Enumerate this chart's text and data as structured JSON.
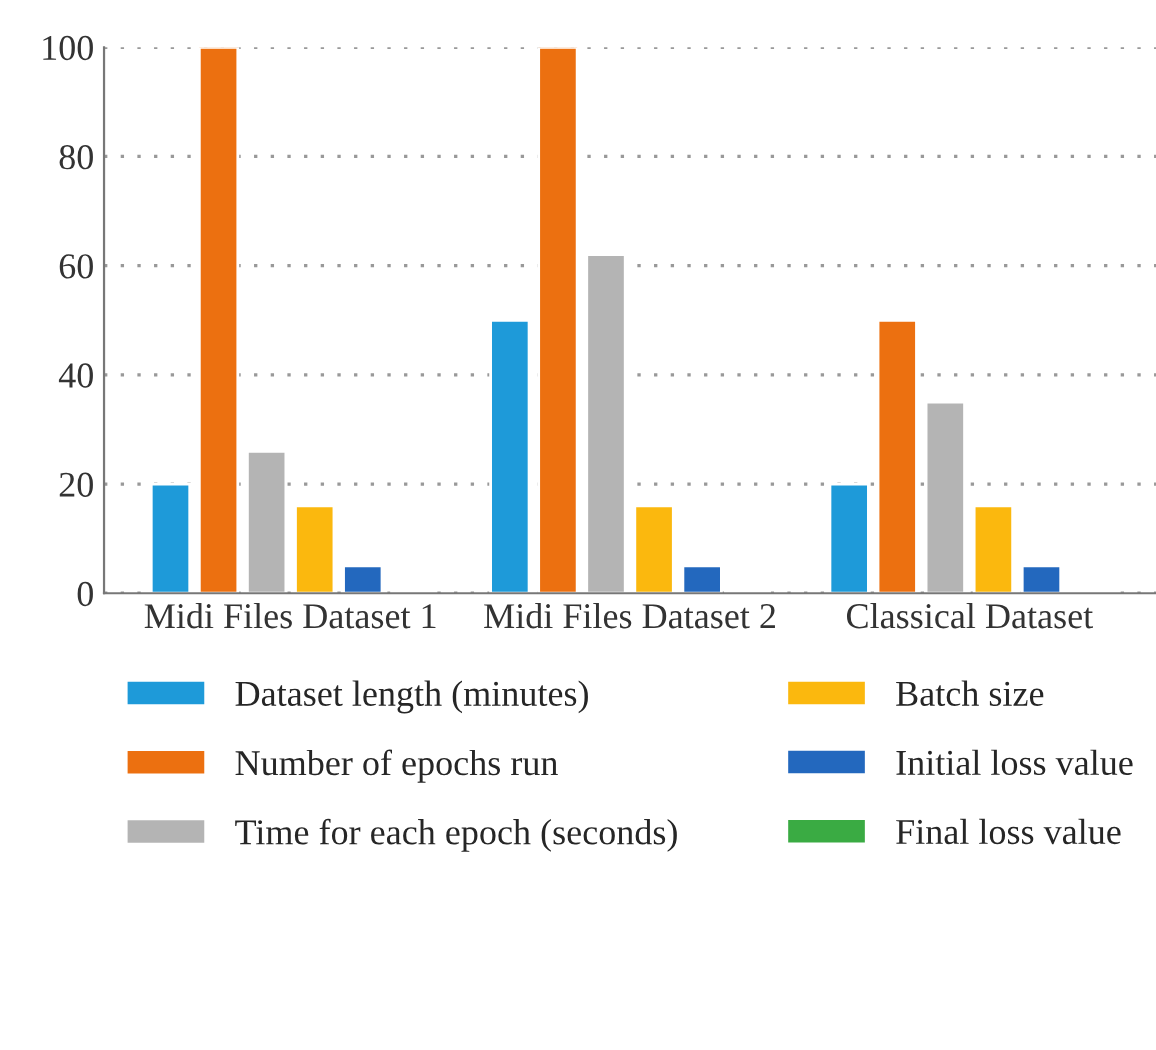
{
  "chart_data": {
    "type": "bar",
    "categories": [
      "Midi Files Dataset 1",
      "Midi Files Dataset 2",
      "Classical Dataset"
    ],
    "series": [
      {
        "name": "Dataset length (minutes)",
        "color": "#1e9ad9",
        "values": [
          20,
          50,
          20
        ]
      },
      {
        "name": "Number of epochs run",
        "color": "#ec7010",
        "values": [
          100,
          100,
          50
        ]
      },
      {
        "name": "Time for each epoch (seconds)",
        "color": "#b4b4b4",
        "values": [
          26,
          62,
          35
        ]
      },
      {
        "name": "Batch size",
        "color": "#fbb80e",
        "values": [
          16,
          16,
          16
        ]
      },
      {
        "name": "Initial loss value",
        "color": "#2368be",
        "values": [
          5,
          5,
          5
        ]
      },
      {
        "name": "Final loss value",
        "color": "#3aab43",
        "values": [
          0.5,
          0.5,
          0.5
        ]
      }
    ],
    "ylim": [
      0,
      100
    ],
    "yticks": [
      0,
      20,
      40,
      60,
      80,
      100
    ],
    "grid": "y",
    "legend": "bottom"
  }
}
